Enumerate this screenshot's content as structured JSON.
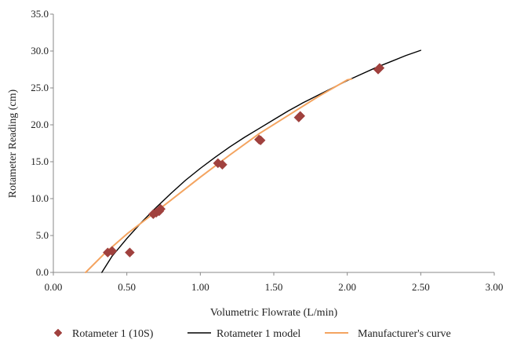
{
  "chart_data": {
    "type": "scatter",
    "title": "",
    "xlabel": "Volumetric Flowrate (L/min)",
    "ylabel": "Rotameter Reading (cm)",
    "xlim": [
      0,
      3
    ],
    "ylim": [
      0,
      35
    ],
    "x_ticks": [
      "0.00",
      "0.50",
      "1.00",
      "1.50",
      "2.00",
      "2.50",
      "3.00"
    ],
    "y_ticks": [
      "0.0",
      "5.0",
      "10.0",
      "15.0",
      "20.0",
      "25.0",
      "30.0",
      "35.0"
    ],
    "x_tick_values": [
      0,
      0.5,
      1.0,
      1.5,
      2.0,
      2.5,
      3.0
    ],
    "y_tick_values": [
      0,
      5,
      10,
      15,
      20,
      25,
      30,
      35
    ],
    "grid": false,
    "legend_position": "bottom",
    "series": [
      {
        "name": "Rotameter 1 (10S)",
        "kind": "markers",
        "marker": "diamond",
        "color": "#a0413e",
        "x": [
          0.37,
          0.4,
          0.52,
          0.68,
          0.7,
          0.72,
          0.73,
          1.12,
          1.15,
          1.4,
          1.41,
          1.67,
          1.68,
          2.21,
          2.22
        ],
        "y": [
          2.7,
          2.9,
          2.7,
          7.9,
          8.1,
          8.3,
          8.6,
          14.8,
          14.6,
          18.0,
          17.9,
          21.0,
          21.2,
          27.5,
          27.7
        ]
      },
      {
        "name": "Rotameter 1 model",
        "kind": "line",
        "color": "#000000",
        "x": [
          0.33,
          0.4,
          0.5,
          0.6,
          0.7,
          0.8,
          0.9,
          1.0,
          1.1,
          1.2,
          1.3,
          1.4,
          1.5,
          1.6,
          1.7,
          1.8,
          1.9,
          2.0,
          2.1,
          2.2,
          2.3,
          2.4,
          2.5
        ],
        "y": [
          0.0,
          2.2,
          4.6,
          6.8,
          8.8,
          10.7,
          12.5,
          14.1,
          15.6,
          17.0,
          18.3,
          19.5,
          20.7,
          21.9,
          23.0,
          24.0,
          25.0,
          26.0,
          26.9,
          27.8,
          28.6,
          29.4,
          30.1
        ]
      },
      {
        "name": "Manufacturer's curve",
        "kind": "line",
        "color": "#f4a460",
        "x": [
          0.22,
          0.35,
          0.5,
          0.65,
          0.8,
          1.0,
          1.2,
          1.4,
          1.6,
          1.8,
          2.0,
          2.03
        ],
        "y": [
          0.0,
          2.6,
          5.2,
          7.5,
          9.8,
          12.9,
          15.9,
          18.8,
          21.3,
          23.8,
          26.1,
          26.2
        ]
      }
    ]
  }
}
